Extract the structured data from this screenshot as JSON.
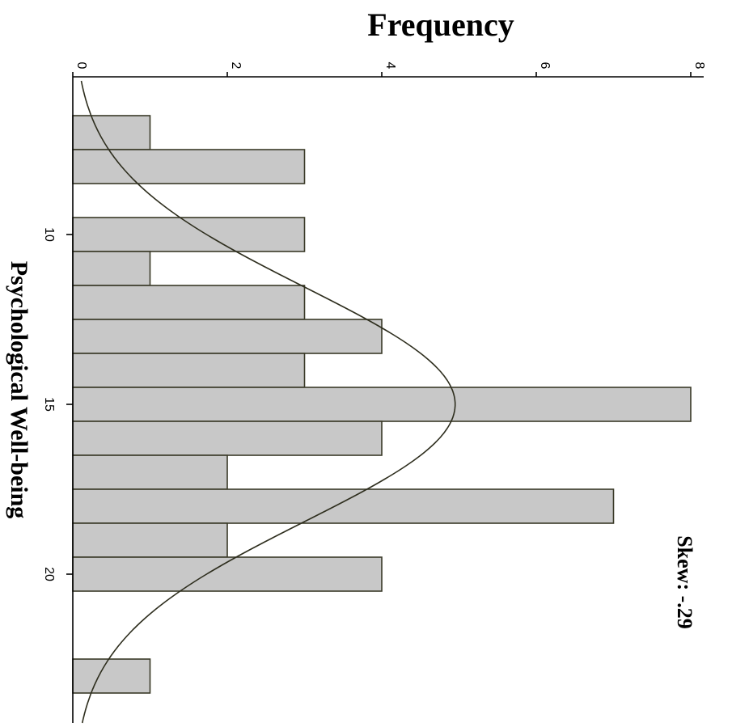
{
  "chart_data": {
    "type": "bar",
    "orientation": "rotated-90-clockwise",
    "xlabel": "Psychological Well-being",
    "ylabel": "Frequency",
    "annotation": "Skew: -.29",
    "x_ticks": [
      10,
      15,
      20
    ],
    "y_ticks": [
      0,
      2,
      4,
      6,
      8
    ],
    "ylim": [
      0,
      8.2
    ],
    "bin_width": 1,
    "bins": [
      {
        "x": 7,
        "count": 1
      },
      {
        "x": 8,
        "count": 3
      },
      {
        "x": 9,
        "count": 0
      },
      {
        "x": 10,
        "count": 3
      },
      {
        "x": 11,
        "count": 1
      },
      {
        "x": 12,
        "count": 3
      },
      {
        "x": 13,
        "count": 4
      },
      {
        "x": 14,
        "count": 3
      },
      {
        "x": 15,
        "count": 8
      },
      {
        "x": 16,
        "count": 4
      },
      {
        "x": 17,
        "count": 2
      },
      {
        "x": 18,
        "count": 7
      },
      {
        "x": 19,
        "count": 2
      },
      {
        "x": 20,
        "count": 4
      },
      {
        "x": 21,
        "count": 0
      },
      {
        "x": 22,
        "count": 0
      },
      {
        "x": 23,
        "count": 1
      }
    ],
    "normal_curve": {
      "mean": 15.0,
      "sd": 3.45,
      "peak_frequency": 4.95
    },
    "grid": false,
    "colors": {
      "bar_fill": "#c8c8c8",
      "bar_stroke": "#3a3a28",
      "curve": "#2e2e1e",
      "axis": "#000000"
    }
  }
}
